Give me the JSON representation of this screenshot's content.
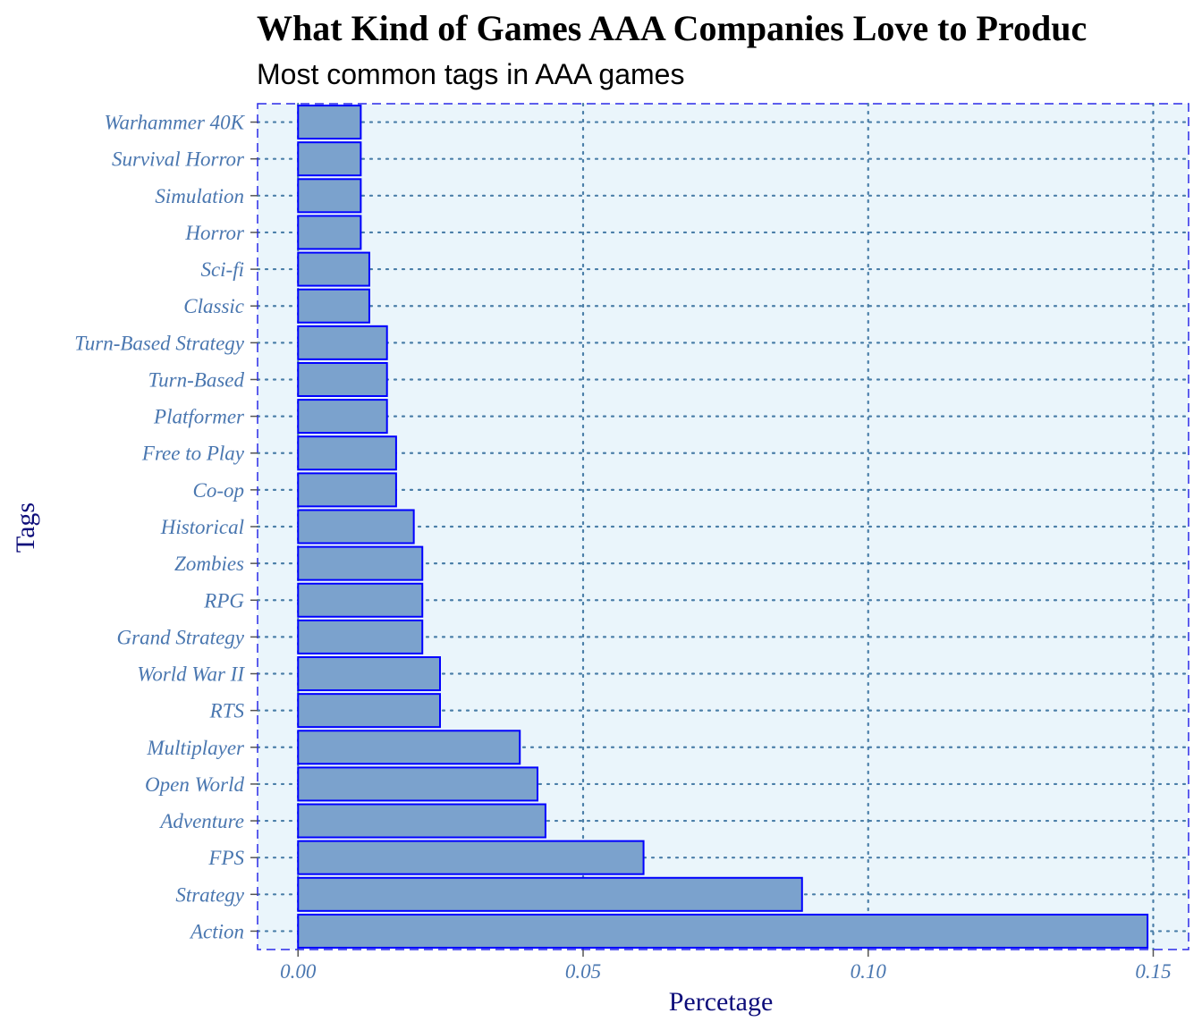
{
  "chart_data": {
    "type": "bar",
    "orientation": "horizontal",
    "title": "What Kind of Games AAA Companies Love to Produc",
    "subtitle": "Most common tags in AAA games",
    "xlabel": "Percetage",
    "ylabel": "Tags",
    "xlim": [
      -0.0071,
      0.1562
    ],
    "xticks": [
      0.0,
      0.05,
      0.1,
      0.15
    ],
    "xtick_labels": [
      "0.00",
      "0.05",
      "0.10",
      "0.15"
    ],
    "grid": true,
    "legend": "none",
    "categories": [
      "Action",
      "Strategy",
      "FPS",
      "Adventure",
      "Open World",
      "Multiplayer",
      "RTS",
      "World War II",
      "Grand Strategy",
      "RPG",
      "Zombies",
      "Historical",
      "Co-op",
      "Free to Play",
      "Platformer",
      "Turn-Based",
      "Turn-Based Strategy",
      "Classic",
      "Sci-fi",
      "Horror",
      "Simulation",
      "Survival Horror",
      "Warhammer 40K"
    ],
    "values": [
      0.149,
      0.0884,
      0.0606,
      0.0434,
      0.042,
      0.0389,
      0.0249,
      0.0249,
      0.0218,
      0.0218,
      0.0218,
      0.0203,
      0.0172,
      0.0172,
      0.0156,
      0.0156,
      0.0156,
      0.0125,
      0.0125,
      0.011,
      0.011,
      0.011,
      0.011
    ]
  },
  "colors": {
    "panel_background": "#eaf5fb",
    "panel_border": "#2a2ae8",
    "bar_fill": "#7ba2cd",
    "bar_stroke": "#0000ff",
    "grid": "#4a7ea8",
    "tick_label": "#4a77b0",
    "axis_title": "#0d0d7a",
    "title": "#000000"
  }
}
